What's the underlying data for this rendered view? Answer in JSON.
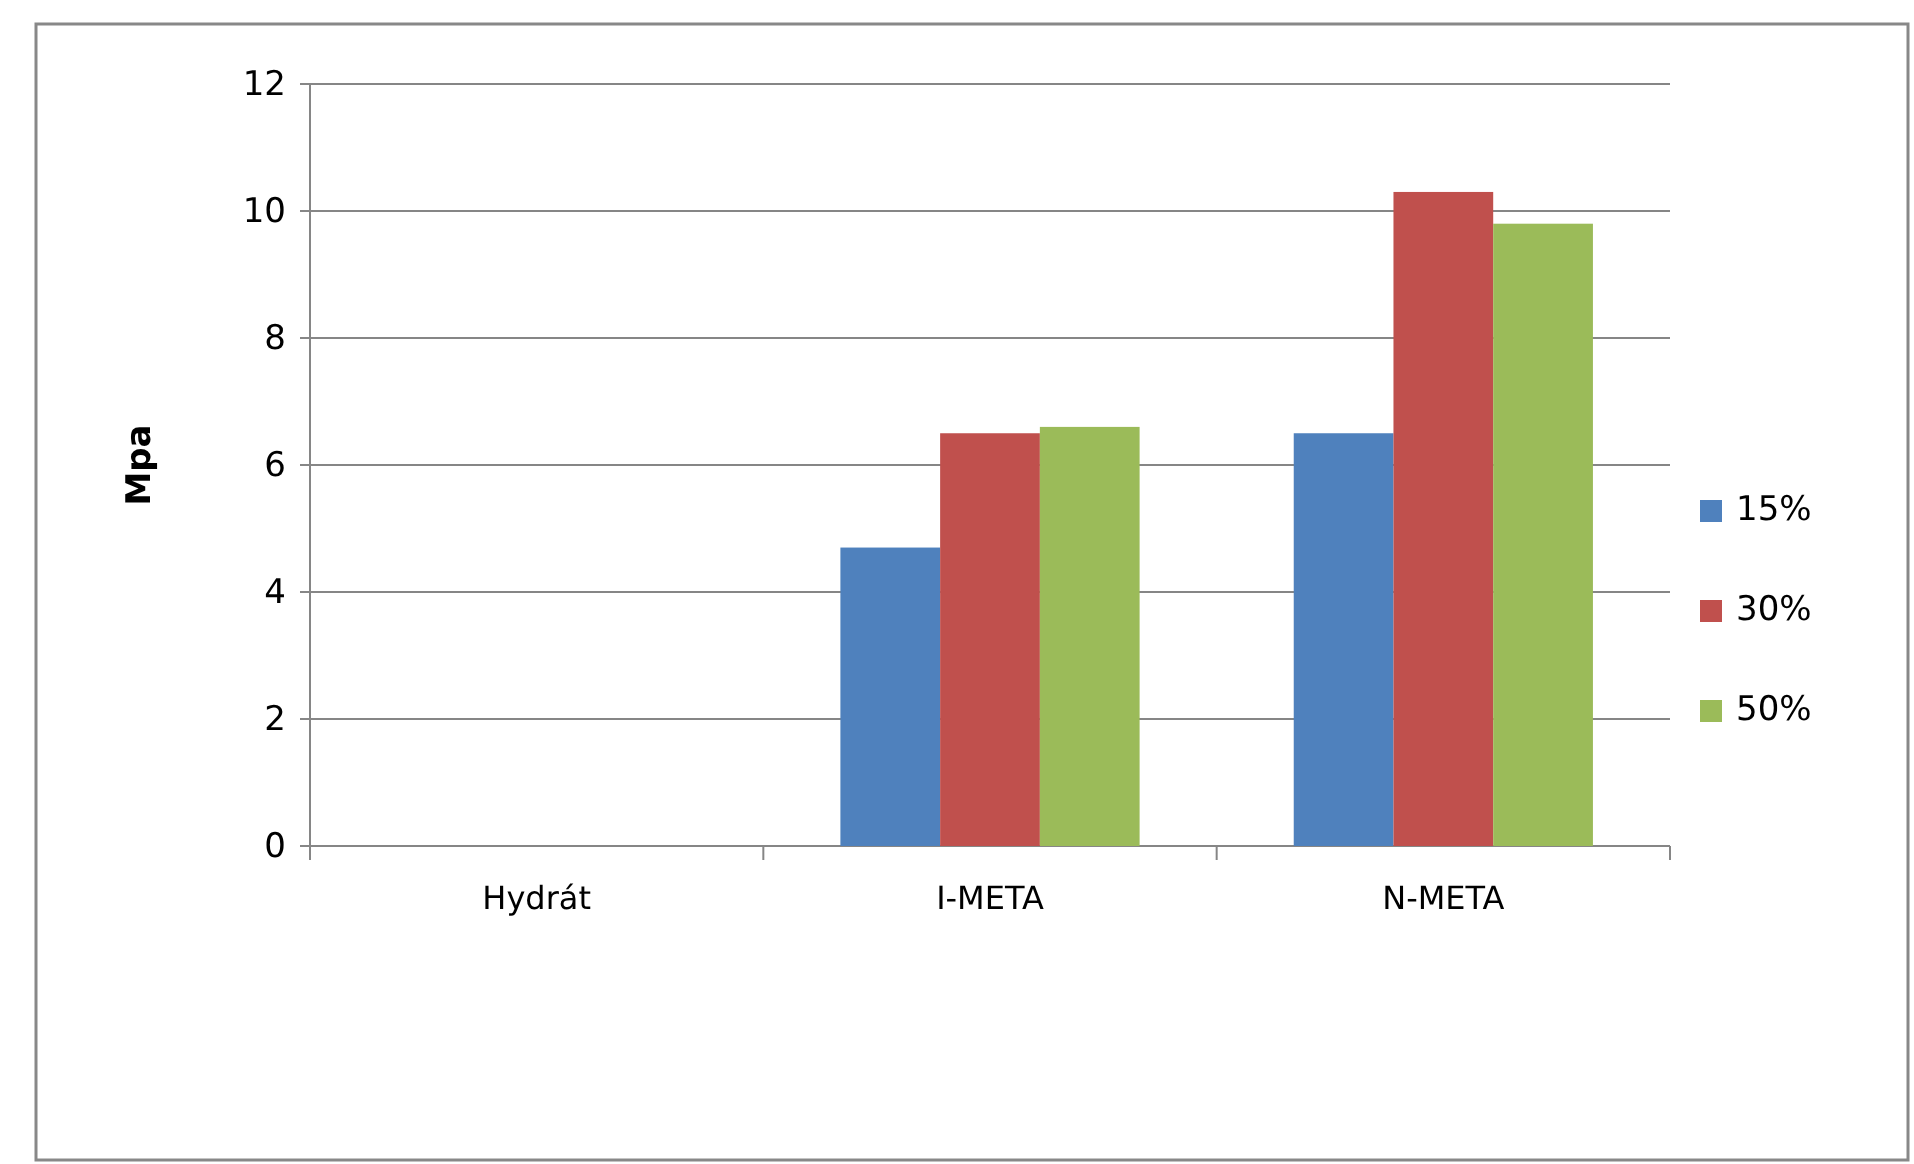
{
  "chart_data": {
    "type": "bar",
    "ylabel": "Mpa",
    "categories": [
      "Hydrát",
      "I-META",
      "N-META"
    ],
    "series": [
      {
        "name": "15%",
        "color": "#4f81bd",
        "values": [
          0,
          4.7,
          6.5
        ]
      },
      {
        "name": "30%",
        "color": "#c0504d",
        "values": [
          0,
          6.5,
          10.3
        ]
      },
      {
        "name": "50%",
        "color": "#9bbb59",
        "values": [
          0,
          6.6,
          9.8
        ]
      }
    ],
    "ylim": [
      0,
      12
    ],
    "yticks": [
      0,
      2,
      4,
      6,
      8,
      10,
      12
    ],
    "grid": "y",
    "legend": "right"
  }
}
